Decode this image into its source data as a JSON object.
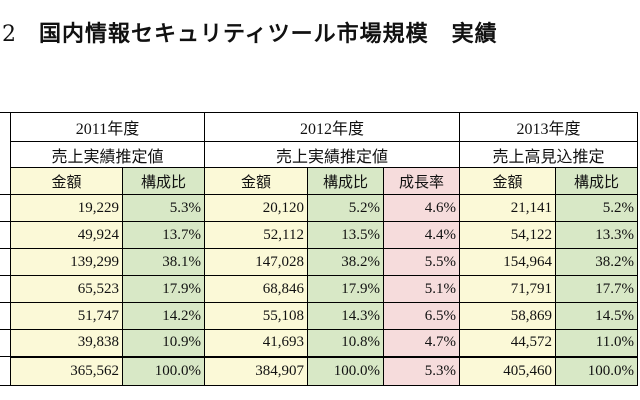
{
  "title": {
    "number": "2",
    "text": "国内情報セキュリティツール市場規模　実績"
  },
  "years": [
    {
      "label": "2011年度",
      "subtitle": "売上実績推定値"
    },
    {
      "label": "2012年度",
      "subtitle": "売上実績推定値"
    },
    {
      "label": "2013年度",
      "subtitle": "売上高見込推定"
    }
  ],
  "columns": {
    "amount": "金額",
    "share": "構成比",
    "growth": "成長率",
    "share_partial": "構成比"
  },
  "rows": [
    {
      "y2011_amount": "19,229",
      "y2011_share": "5.3%",
      "y2012_amount": "20,120",
      "y2012_share": "5.2%",
      "y2012_growth": "4.6%",
      "y2013_amount": "21,141",
      "y2013_share": "5.2%"
    },
    {
      "y2011_amount": "49,924",
      "y2011_share": "13.7%",
      "y2012_amount": "52,112",
      "y2012_share": "13.5%",
      "y2012_growth": "4.4%",
      "y2013_amount": "54,122",
      "y2013_share": "13.3%"
    },
    {
      "y2011_amount": "139,299",
      "y2011_share": "38.1%",
      "y2012_amount": "147,028",
      "y2012_share": "38.2%",
      "y2012_growth": "5.5%",
      "y2013_amount": "154,964",
      "y2013_share": "38.2%"
    },
    {
      "y2011_amount": "65,523",
      "y2011_share": "17.9%",
      "y2012_amount": "68,846",
      "y2012_share": "17.9%",
      "y2012_growth": "5.1%",
      "y2013_amount": "71,791",
      "y2013_share": "17.7%"
    },
    {
      "y2011_amount": "51,747",
      "y2011_share": "14.2%",
      "y2012_amount": "55,108",
      "y2012_share": "14.3%",
      "y2012_growth": "6.5%",
      "y2013_amount": "58,869",
      "y2013_share": "14.5%"
    },
    {
      "y2011_amount": "39,838",
      "y2011_share": "10.9%",
      "y2012_amount": "41,693",
      "y2012_share": "10.8%",
      "y2012_growth": "4.7%",
      "y2013_amount": "44,572",
      "y2013_share": "11.0%"
    }
  ],
  "total": {
    "y2011_amount": "365,562",
    "y2011_share": "100.0%",
    "y2012_amount": "384,907",
    "y2012_share": "100.0%",
    "y2012_growth": "5.3%",
    "y2013_amount": "405,460",
    "y2013_share": "100.0%"
  },
  "colors": {
    "amount_fill": "#fbf9d7",
    "share_fill": "#d8e8c6",
    "growth_fill": "#f6dcdc"
  }
}
